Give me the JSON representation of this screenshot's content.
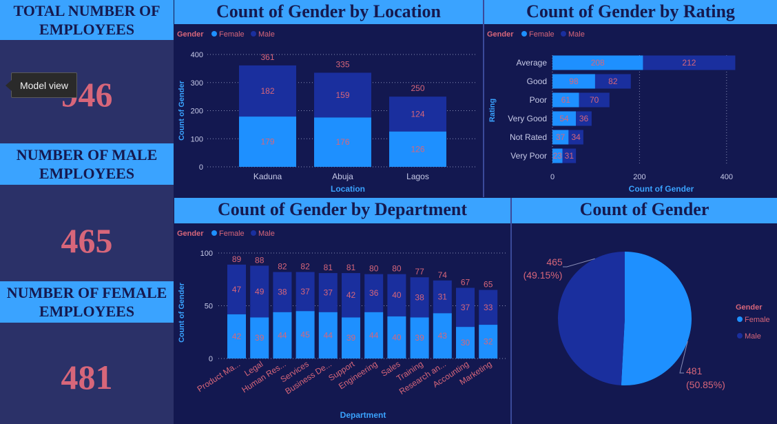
{
  "kpis": {
    "total_label": "TOTAL NUMBER OF EMPLOYEES",
    "total_value": "946",
    "male_label": "NUMBER OF MALE EMPLOYEES",
    "male_value": "465",
    "female_label": "NUMBER OF FEMALE EMPLOYEES",
    "female_value": "481"
  },
  "tooltip": {
    "text": "Model view"
  },
  "legend": {
    "title": "Gender",
    "female": "Female",
    "male": "Male"
  },
  "colors": {
    "female": "#1e90ff",
    "male": "#1a2f9e",
    "accent": "#3aa3ff",
    "label": "#d7667a",
    "background": "#15194f"
  },
  "chart_data": [
    {
      "type": "bar",
      "stacked": true,
      "title": "Count of Gender by Location",
      "xlabel": "Location",
      "ylabel": "Count of Gender",
      "ylim": [
        0,
        400
      ],
      "yticks": [
        0,
        100,
        200,
        300,
        400
      ],
      "categories": [
        "Kaduna",
        "Abuja",
        "Lagos"
      ],
      "series": [
        {
          "name": "Female",
          "values": [
            179,
            176,
            126
          ]
        },
        {
          "name": "Male",
          "values": [
            182,
            159,
            124
          ]
        }
      ],
      "totals": [
        361,
        335,
        250
      ]
    },
    {
      "type": "bar",
      "orientation": "horizontal",
      "stacked": true,
      "title": "Count of Gender by Rating",
      "xlabel": "Count of Gender",
      "ylabel": "Rating",
      "xlim": [
        0,
        420
      ],
      "xticks": [
        0,
        200,
        400
      ],
      "categories": [
        "Average",
        "Good",
        "Poor",
        "Very Good",
        "Not Rated",
        "Very Poor"
      ],
      "series": [
        {
          "name": "Female",
          "values": [
            208,
            98,
            61,
            54,
            37,
            23
          ]
        },
        {
          "name": "Male",
          "values": [
            212,
            82,
            70,
            36,
            34,
            31
          ]
        }
      ]
    },
    {
      "type": "bar",
      "stacked": true,
      "title": "Count of Gender by Department",
      "xlabel": "Department",
      "ylabel": "Count of Gender",
      "ylim": [
        0,
        100
      ],
      "yticks": [
        0,
        50,
        100
      ],
      "categories": [
        "Product Ma...",
        "Legal",
        "Human Res...",
        "Services",
        "Business De...",
        "Support",
        "Engineering",
        "Sales",
        "Training",
        "Research an...",
        "Accounting",
        "Marketing"
      ],
      "series": [
        {
          "name": "Female",
          "values": [
            42,
            39,
            44,
            45,
            44,
            39,
            44,
            40,
            39,
            43,
            30,
            32
          ]
        },
        {
          "name": "Male",
          "values": [
            47,
            49,
            38,
            37,
            37,
            42,
            36,
            40,
            38,
            31,
            37,
            33
          ]
        }
      ],
      "totals": [
        89,
        88,
        82,
        82,
        81,
        81,
        80,
        80,
        77,
        74,
        67,
        65
      ]
    },
    {
      "type": "pie",
      "title": "Count of Gender",
      "slices": [
        {
          "name": "Male",
          "value": 465,
          "label": "465",
          "percent": "(49.15%)"
        },
        {
          "name": "Female",
          "value": 481,
          "label": "481",
          "percent": "(50.85%)"
        }
      ]
    }
  ]
}
